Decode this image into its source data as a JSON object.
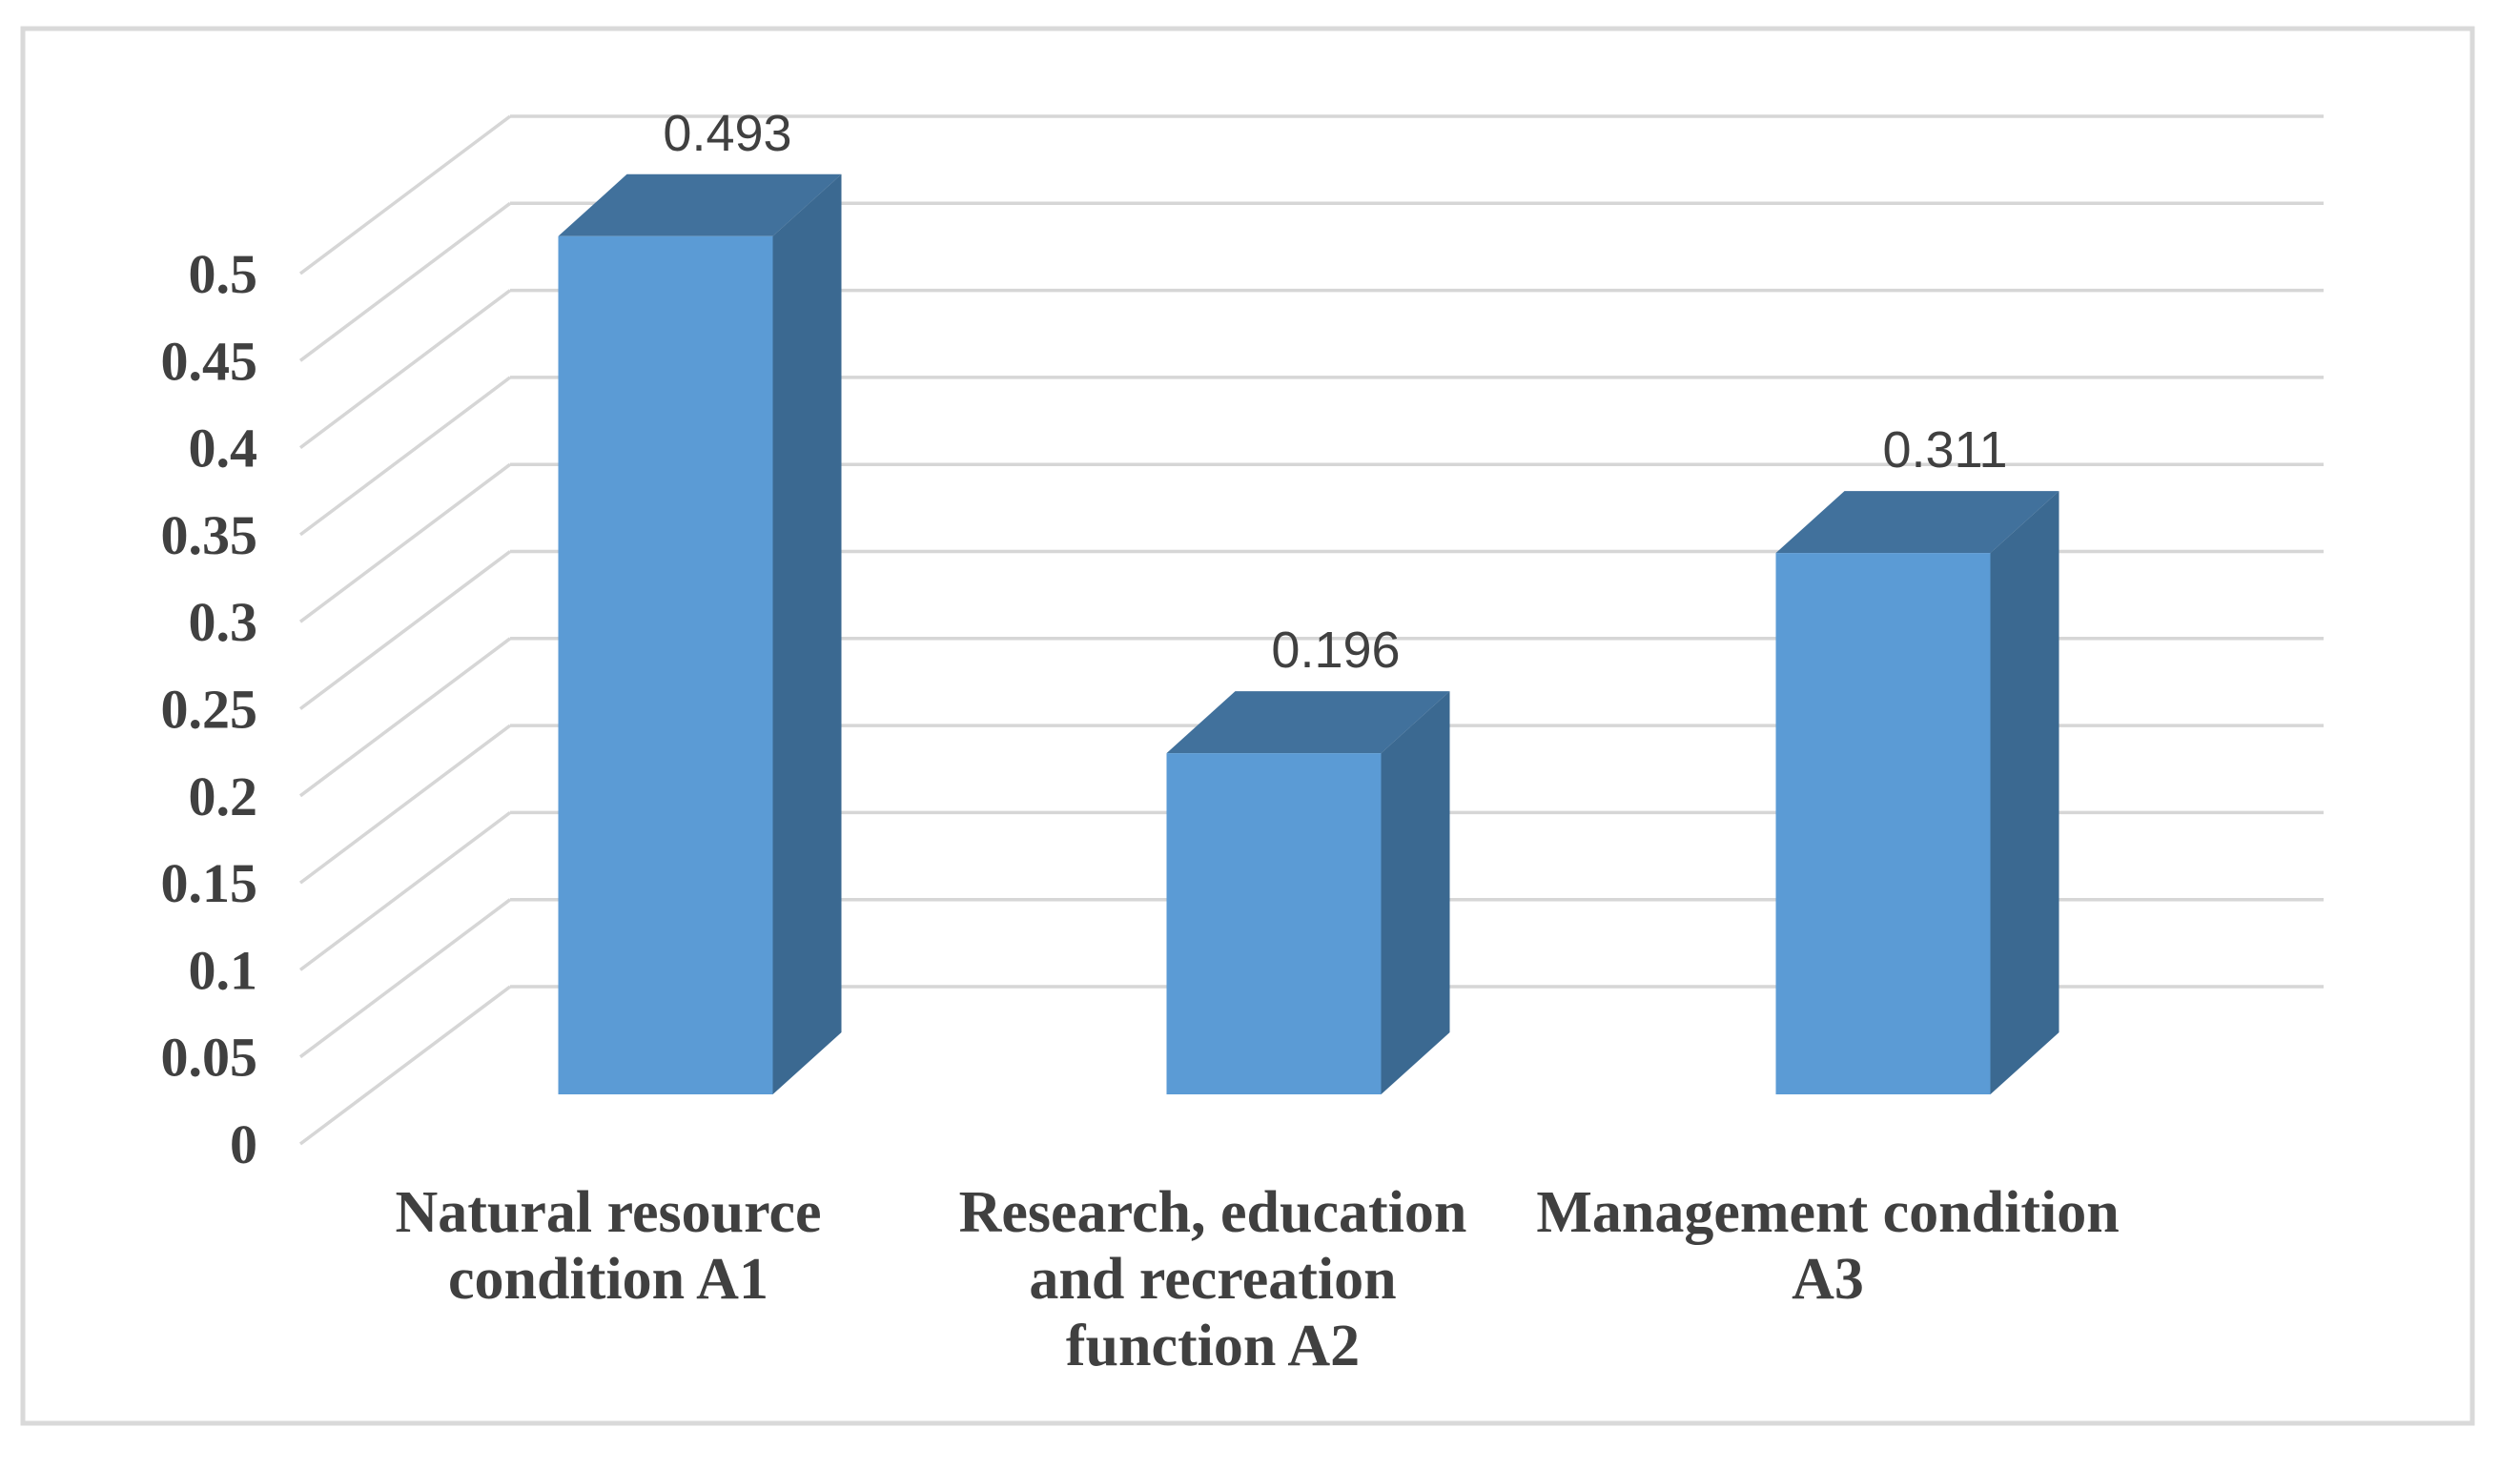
{
  "chart_data": {
    "type": "bar",
    "projection": "3d",
    "title": "",
    "xlabel": "",
    "ylabel": "",
    "categories": [
      "Natural resource condition A1",
      "Research, education and recreation function A2",
      "Management condition A3"
    ],
    "category_lines": [
      [
        "Natural resource",
        "condition A1"
      ],
      [
        "Research, education",
        "and recreation",
        "function A2"
      ],
      [
        "Management condition",
        "A3"
      ]
    ],
    "values": [
      0.493,
      0.196,
      0.311
    ],
    "data_labels": [
      "0.493",
      "0.196",
      "0.311"
    ],
    "y_ticks": [
      "0",
      "0.05",
      "0.1",
      "0.15",
      "0.2",
      "0.25",
      "0.3",
      "0.35",
      "0.4",
      "0.45",
      "0.5"
    ],
    "y_tick_values": [
      0,
      0.05,
      0.1,
      0.15,
      0.2,
      0.25,
      0.3,
      0.35,
      0.4,
      0.45,
      0.5
    ],
    "ylim": [
      0,
      0.5
    ],
    "grid": true,
    "legend_position": "none",
    "colors": {
      "bar_front": "#5B9BD5",
      "bar_top": "#41719C",
      "bar_side": "#3B6991",
      "gridline": "#D6D6D6",
      "text": "#404040",
      "border": "#D9D9D9",
      "background": "#FFFFFF"
    }
  }
}
